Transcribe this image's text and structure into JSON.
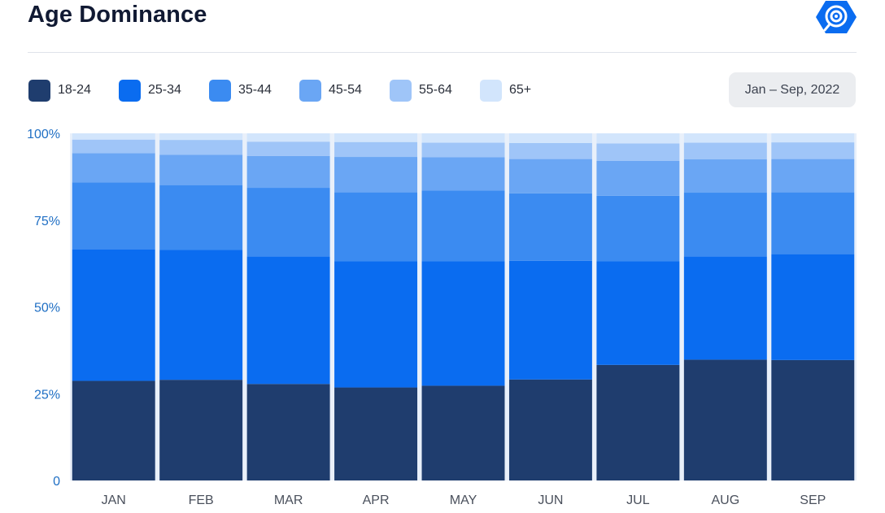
{
  "header": {
    "title": "Age Dominance",
    "logo_icon": "radar-signal-icon",
    "logo_color": "#0a6cf0"
  },
  "date_range": {
    "label": "Jan – Sep, 2022"
  },
  "chart_data": {
    "type": "bar",
    "stacked": true,
    "normalized_percent": true,
    "title": "Age Dominance",
    "xlabel": "",
    "ylabel": "",
    "ylim": [
      0,
      100
    ],
    "grid": false,
    "legend_placement": "top-left",
    "categories": [
      "JAN",
      "FEB",
      "MAR",
      "APR",
      "MAY",
      "JUN",
      "JUL",
      "AUG",
      "SEP"
    ],
    "y_ticks": [
      {
        "value": 0,
        "label": "0"
      },
      {
        "value": 25,
        "label": "25%"
      },
      {
        "value": 50,
        "label": "50%"
      },
      {
        "value": 75,
        "label": "75%"
      },
      {
        "value": 100,
        "label": "100%"
      }
    ],
    "series": [
      {
        "name": "18-24",
        "color": "#1f3d6e",
        "values": [
          28.7,
          29.0,
          27.8,
          26.8,
          27.3,
          29.1,
          33.3,
          34.8,
          34.7
        ]
      },
      {
        "name": "25-34",
        "color": "#0a6cf0",
        "values": [
          37.9,
          37.4,
          36.7,
          36.4,
          35.9,
          34.2,
          29.9,
          29.7,
          30.5
        ]
      },
      {
        "name": "35-44",
        "color": "#3b8bf1",
        "values": [
          19.3,
          18.7,
          19.8,
          19.8,
          20.3,
          19.4,
          18.8,
          18.4,
          17.8
        ]
      },
      {
        "name": "45-54",
        "color": "#6aa6f4",
        "values": [
          8.4,
          8.7,
          9.2,
          10.2,
          9.6,
          9.9,
          10.1,
          9.6,
          9.6
        ]
      },
      {
        "name": "55-64",
        "color": "#9fc5f8",
        "values": [
          3.9,
          4.3,
          4.1,
          4.3,
          4.2,
          4.6,
          5.0,
          4.8,
          4.8
        ]
      },
      {
        "name": "65+",
        "color": "#d2e5fc",
        "values": [
          1.8,
          1.9,
          2.4,
          2.5,
          2.7,
          2.8,
          2.9,
          2.7,
          2.6
        ]
      }
    ]
  }
}
